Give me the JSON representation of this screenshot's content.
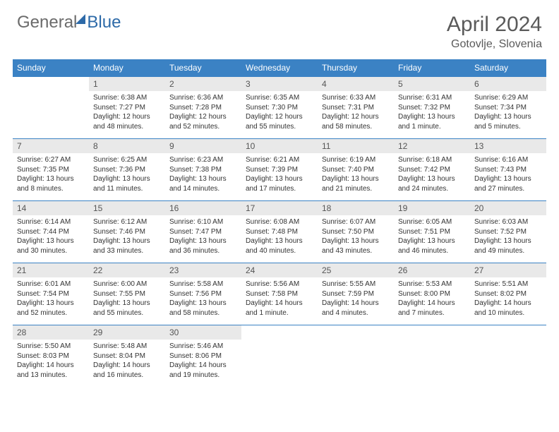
{
  "logo": {
    "text1": "General",
    "text2": "Blue"
  },
  "title": "April 2024",
  "location": "Gotovlje, Slovenia",
  "colors": {
    "header_bg": "#3b82c4",
    "header_text": "#ffffff",
    "daynum_bg": "#e9e9e9",
    "daynum_text": "#555555",
    "border": "#3b82c4",
    "logo_gray": "#6b6b6b",
    "logo_blue": "#2d6aa8"
  },
  "typography": {
    "title_fontsize": 30,
    "location_fontsize": 16,
    "header_fontsize": 12,
    "daynum_fontsize": 12,
    "content_fontsize": 10
  },
  "columns": [
    "Sunday",
    "Monday",
    "Tuesday",
    "Wednesday",
    "Thursday",
    "Friday",
    "Saturday"
  ],
  "weeks": [
    [
      {
        "day": "",
        "sunrise": "",
        "sunset": "",
        "daylight": ""
      },
      {
        "day": "1",
        "sunrise": "Sunrise: 6:38 AM",
        "sunset": "Sunset: 7:27 PM",
        "daylight": "Daylight: 12 hours and 48 minutes."
      },
      {
        "day": "2",
        "sunrise": "Sunrise: 6:36 AM",
        "sunset": "Sunset: 7:28 PM",
        "daylight": "Daylight: 12 hours and 52 minutes."
      },
      {
        "day": "3",
        "sunrise": "Sunrise: 6:35 AM",
        "sunset": "Sunset: 7:30 PM",
        "daylight": "Daylight: 12 hours and 55 minutes."
      },
      {
        "day": "4",
        "sunrise": "Sunrise: 6:33 AM",
        "sunset": "Sunset: 7:31 PM",
        "daylight": "Daylight: 12 hours and 58 minutes."
      },
      {
        "day": "5",
        "sunrise": "Sunrise: 6:31 AM",
        "sunset": "Sunset: 7:32 PM",
        "daylight": "Daylight: 13 hours and 1 minute."
      },
      {
        "day": "6",
        "sunrise": "Sunrise: 6:29 AM",
        "sunset": "Sunset: 7:34 PM",
        "daylight": "Daylight: 13 hours and 5 minutes."
      }
    ],
    [
      {
        "day": "7",
        "sunrise": "Sunrise: 6:27 AM",
        "sunset": "Sunset: 7:35 PM",
        "daylight": "Daylight: 13 hours and 8 minutes."
      },
      {
        "day": "8",
        "sunrise": "Sunrise: 6:25 AM",
        "sunset": "Sunset: 7:36 PM",
        "daylight": "Daylight: 13 hours and 11 minutes."
      },
      {
        "day": "9",
        "sunrise": "Sunrise: 6:23 AM",
        "sunset": "Sunset: 7:38 PM",
        "daylight": "Daylight: 13 hours and 14 minutes."
      },
      {
        "day": "10",
        "sunrise": "Sunrise: 6:21 AM",
        "sunset": "Sunset: 7:39 PM",
        "daylight": "Daylight: 13 hours and 17 minutes."
      },
      {
        "day": "11",
        "sunrise": "Sunrise: 6:19 AM",
        "sunset": "Sunset: 7:40 PM",
        "daylight": "Daylight: 13 hours and 21 minutes."
      },
      {
        "day": "12",
        "sunrise": "Sunrise: 6:18 AM",
        "sunset": "Sunset: 7:42 PM",
        "daylight": "Daylight: 13 hours and 24 minutes."
      },
      {
        "day": "13",
        "sunrise": "Sunrise: 6:16 AM",
        "sunset": "Sunset: 7:43 PM",
        "daylight": "Daylight: 13 hours and 27 minutes."
      }
    ],
    [
      {
        "day": "14",
        "sunrise": "Sunrise: 6:14 AM",
        "sunset": "Sunset: 7:44 PM",
        "daylight": "Daylight: 13 hours and 30 minutes."
      },
      {
        "day": "15",
        "sunrise": "Sunrise: 6:12 AM",
        "sunset": "Sunset: 7:46 PM",
        "daylight": "Daylight: 13 hours and 33 minutes."
      },
      {
        "day": "16",
        "sunrise": "Sunrise: 6:10 AM",
        "sunset": "Sunset: 7:47 PM",
        "daylight": "Daylight: 13 hours and 36 minutes."
      },
      {
        "day": "17",
        "sunrise": "Sunrise: 6:08 AM",
        "sunset": "Sunset: 7:48 PM",
        "daylight": "Daylight: 13 hours and 40 minutes."
      },
      {
        "day": "18",
        "sunrise": "Sunrise: 6:07 AM",
        "sunset": "Sunset: 7:50 PM",
        "daylight": "Daylight: 13 hours and 43 minutes."
      },
      {
        "day": "19",
        "sunrise": "Sunrise: 6:05 AM",
        "sunset": "Sunset: 7:51 PM",
        "daylight": "Daylight: 13 hours and 46 minutes."
      },
      {
        "day": "20",
        "sunrise": "Sunrise: 6:03 AM",
        "sunset": "Sunset: 7:52 PM",
        "daylight": "Daylight: 13 hours and 49 minutes."
      }
    ],
    [
      {
        "day": "21",
        "sunrise": "Sunrise: 6:01 AM",
        "sunset": "Sunset: 7:54 PM",
        "daylight": "Daylight: 13 hours and 52 minutes."
      },
      {
        "day": "22",
        "sunrise": "Sunrise: 6:00 AM",
        "sunset": "Sunset: 7:55 PM",
        "daylight": "Daylight: 13 hours and 55 minutes."
      },
      {
        "day": "23",
        "sunrise": "Sunrise: 5:58 AM",
        "sunset": "Sunset: 7:56 PM",
        "daylight": "Daylight: 13 hours and 58 minutes."
      },
      {
        "day": "24",
        "sunrise": "Sunrise: 5:56 AM",
        "sunset": "Sunset: 7:58 PM",
        "daylight": "Daylight: 14 hours and 1 minute."
      },
      {
        "day": "25",
        "sunrise": "Sunrise: 5:55 AM",
        "sunset": "Sunset: 7:59 PM",
        "daylight": "Daylight: 14 hours and 4 minutes."
      },
      {
        "day": "26",
        "sunrise": "Sunrise: 5:53 AM",
        "sunset": "Sunset: 8:00 PM",
        "daylight": "Daylight: 14 hours and 7 minutes."
      },
      {
        "day": "27",
        "sunrise": "Sunrise: 5:51 AM",
        "sunset": "Sunset: 8:02 PM",
        "daylight": "Daylight: 14 hours and 10 minutes."
      }
    ],
    [
      {
        "day": "28",
        "sunrise": "Sunrise: 5:50 AM",
        "sunset": "Sunset: 8:03 PM",
        "daylight": "Daylight: 14 hours and 13 minutes."
      },
      {
        "day": "29",
        "sunrise": "Sunrise: 5:48 AM",
        "sunset": "Sunset: 8:04 PM",
        "daylight": "Daylight: 14 hours and 16 minutes."
      },
      {
        "day": "30",
        "sunrise": "Sunrise: 5:46 AM",
        "sunset": "Sunset: 8:06 PM",
        "daylight": "Daylight: 14 hours and 19 minutes."
      },
      {
        "day": "",
        "sunrise": "",
        "sunset": "",
        "daylight": ""
      },
      {
        "day": "",
        "sunrise": "",
        "sunset": "",
        "daylight": ""
      },
      {
        "day": "",
        "sunrise": "",
        "sunset": "",
        "daylight": ""
      },
      {
        "day": "",
        "sunrise": "",
        "sunset": "",
        "daylight": ""
      }
    ]
  ]
}
